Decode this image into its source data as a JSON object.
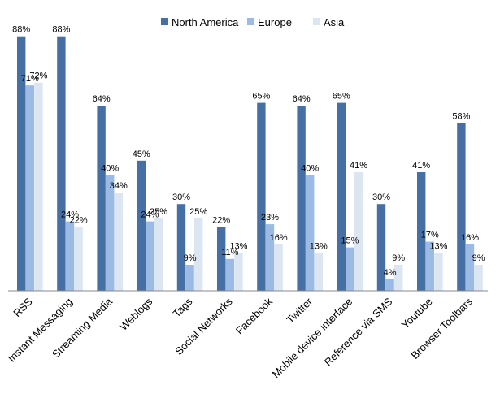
{
  "chart_data": {
    "type": "bar",
    "categories": [
      "RSS",
      "Instant Messaging",
      "Streaming Media",
      "Weblogs",
      "Tags",
      "Social Networks",
      "Facebook",
      "Twitter",
      "Mobile device interface",
      "Reference via SMS",
      "Youtube",
      "Browser Toolbars"
    ],
    "series": [
      {
        "name": "North America",
        "color": "#4670a3",
        "values": [
          88,
          88,
          64,
          45,
          30,
          22,
          65,
          64,
          65,
          30,
          41,
          58
        ],
        "labels": [
          "88%",
          "88%",
          "64%",
          "45%",
          "30%",
          "22%",
          "65%",
          "64%",
          "65%",
          "30%",
          "41%",
          "58%"
        ]
      },
      {
        "name": "Europe",
        "color": "#9bbbe4",
        "values": [
          71,
          24,
          40,
          24,
          9,
          11,
          23,
          40,
          15,
          4,
          17,
          16
        ],
        "labels": [
          "71%",
          "24%",
          "40%",
          "24%",
          "9%",
          "11%",
          "23%",
          "40%",
          "15%",
          "4%",
          "17%",
          "16%"
        ]
      },
      {
        "name": "Asia",
        "color": "#dce6f3",
        "values": [
          72,
          22,
          34,
          25,
          25,
          13,
          16,
          13,
          41,
          9,
          13,
          9
        ],
        "labels": [
          "72%",
          "22%",
          "34%",
          "25%",
          "25%",
          "13%",
          "16%",
          "13%",
          "41%",
          "9%",
          "13%",
          "9%"
        ]
      }
    ],
    "ylim": [
      0,
      100
    ],
    "grid": false,
    "legend_position": "top-center"
  }
}
